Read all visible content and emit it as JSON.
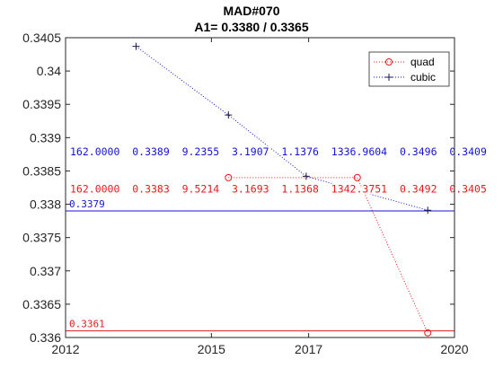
{
  "chart_data": {
    "type": "line",
    "title": "MAD#070",
    "subtitle": "A1= 0.3380 / 0.3365",
    "xlabel": "",
    "ylabel": "",
    "xlim": [
      2012,
      2020
    ],
    "ylim": [
      0.336,
      0.3405
    ],
    "xticks": [
      2012,
      2015,
      2017,
      2020
    ],
    "yticks": [
      0.336,
      0.3365,
      0.337,
      0.3375,
      0.338,
      0.3385,
      0.339,
      0.3395,
      0.34,
      0.3405
    ],
    "ytick_labels": [
      "0.336",
      "0.3365",
      "0.337",
      "0.3375",
      "0.338",
      "0.3385",
      "0.339",
      "0.3395",
      "0.34",
      "0.3405"
    ],
    "grid": false,
    "legend_position": "top-right",
    "series": [
      {
        "name": "quad",
        "color": "#e8191c",
        "marker": "circle",
        "line_style": "dotted",
        "x": [
          2015.35,
          2018.0,
          2019.45
        ],
        "y": [
          0.3384,
          0.3384,
          0.33607
        ],
        "hline": 0.3361,
        "hline_label": "0.3361",
        "params_text": "162.0000  0.3383  9.5214  3.1693  1.1368  1342.3751  0.3492  0.3405",
        "params_y": 0.33823
      },
      {
        "name": "cubic",
        "color": "#1414d9",
        "marker": "plus",
        "line_style": "dotted",
        "x": [
          2013.45,
          2015.35,
          2016.95,
          2019.45
        ],
        "y": [
          0.34037,
          0.33934,
          0.33842,
          0.33791
        ],
        "hline": 0.3379,
        "hline_label": "0.3379",
        "params_text": "162.0000  0.3389  9.2355  3.1907  1.1376  1336.9604  0.3496  0.3409",
        "params_y": 0.33879
      }
    ]
  }
}
